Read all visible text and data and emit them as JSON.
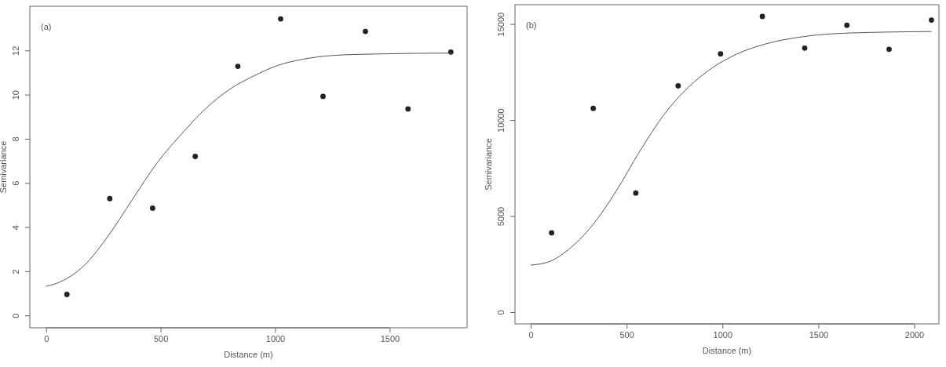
{
  "chart_data": [
    {
      "type": "scatter",
      "marker": "circle",
      "xlabel": "Distance (m)",
      "ylabel": "Semivariance",
      "annotations": [
        "(a)"
      ],
      "xlim": [
        -71,
        1838
      ],
      "ylim": [
        -0.56,
        14
      ],
      "xticks": [
        0,
        500,
        1000,
        1500
      ],
      "yticks": [
        0,
        2,
        4,
        6,
        8,
        10,
        12
      ],
      "series": [
        {
          "color": "#222222",
          "x": [
            91,
            278,
            465,
            651,
            837,
            1024,
            1209,
            1394,
            1580,
            1767
          ],
          "values": [
            0.95,
            5.29,
            4.86,
            7.2,
            11.28,
            13.43,
            9.92,
            12.86,
            9.35,
            11.93
          ]
        },
        {
          "type": "line",
          "color": "#555555",
          "marker": "none",
          "x": [
            0,
            62,
            167,
            273,
            378,
            484,
            589,
            695,
            800,
            906,
            1011,
            1116,
            1248,
            1446,
            1767
          ],
          "values": [
            1.32,
            1.52,
            2.27,
            3.63,
            5.27,
            6.9,
            8.19,
            9.35,
            10.23,
            10.84,
            11.32,
            11.59,
            11.77,
            11.84,
            11.88
          ]
        }
      ]
    },
    {
      "type": "scatter",
      "marker": "circle",
      "xlabel": "Distance (m)",
      "ylabel": "Semivariance",
      "annotations": [
        "(b)"
      ],
      "xlim": [
        -82,
        2129
      ],
      "ylim": [
        -612,
        16005
      ],
      "xticks": [
        0,
        500,
        1000,
        1500,
        2000
      ],
      "yticks": [
        0,
        5000,
        10000,
        15000
      ],
      "series": [
        {
          "color": "#222222",
          "x": [
            109,
            326,
            548,
            769,
            990,
            1208,
            1429,
            1649,
            1869,
            2090
          ],
          "values": [
            4127,
            10607,
            6198,
            11784,
            13448,
            15393,
            13745,
            14938,
            13683,
            15205
          ]
        },
        {
          "type": "line",
          "color": "#555555",
          "marker": "none",
          "x": [
            0,
            99,
            194,
            319,
            445,
            571,
            696,
            822,
            948,
            1074,
            1232,
            1421,
            1657,
            2090
          ],
          "values": [
            2448,
            2636,
            3232,
            4488,
            6292,
            8411,
            10293,
            11706,
            12726,
            13432,
            13981,
            14342,
            14530,
            14608
          ]
        }
      ]
    }
  ]
}
